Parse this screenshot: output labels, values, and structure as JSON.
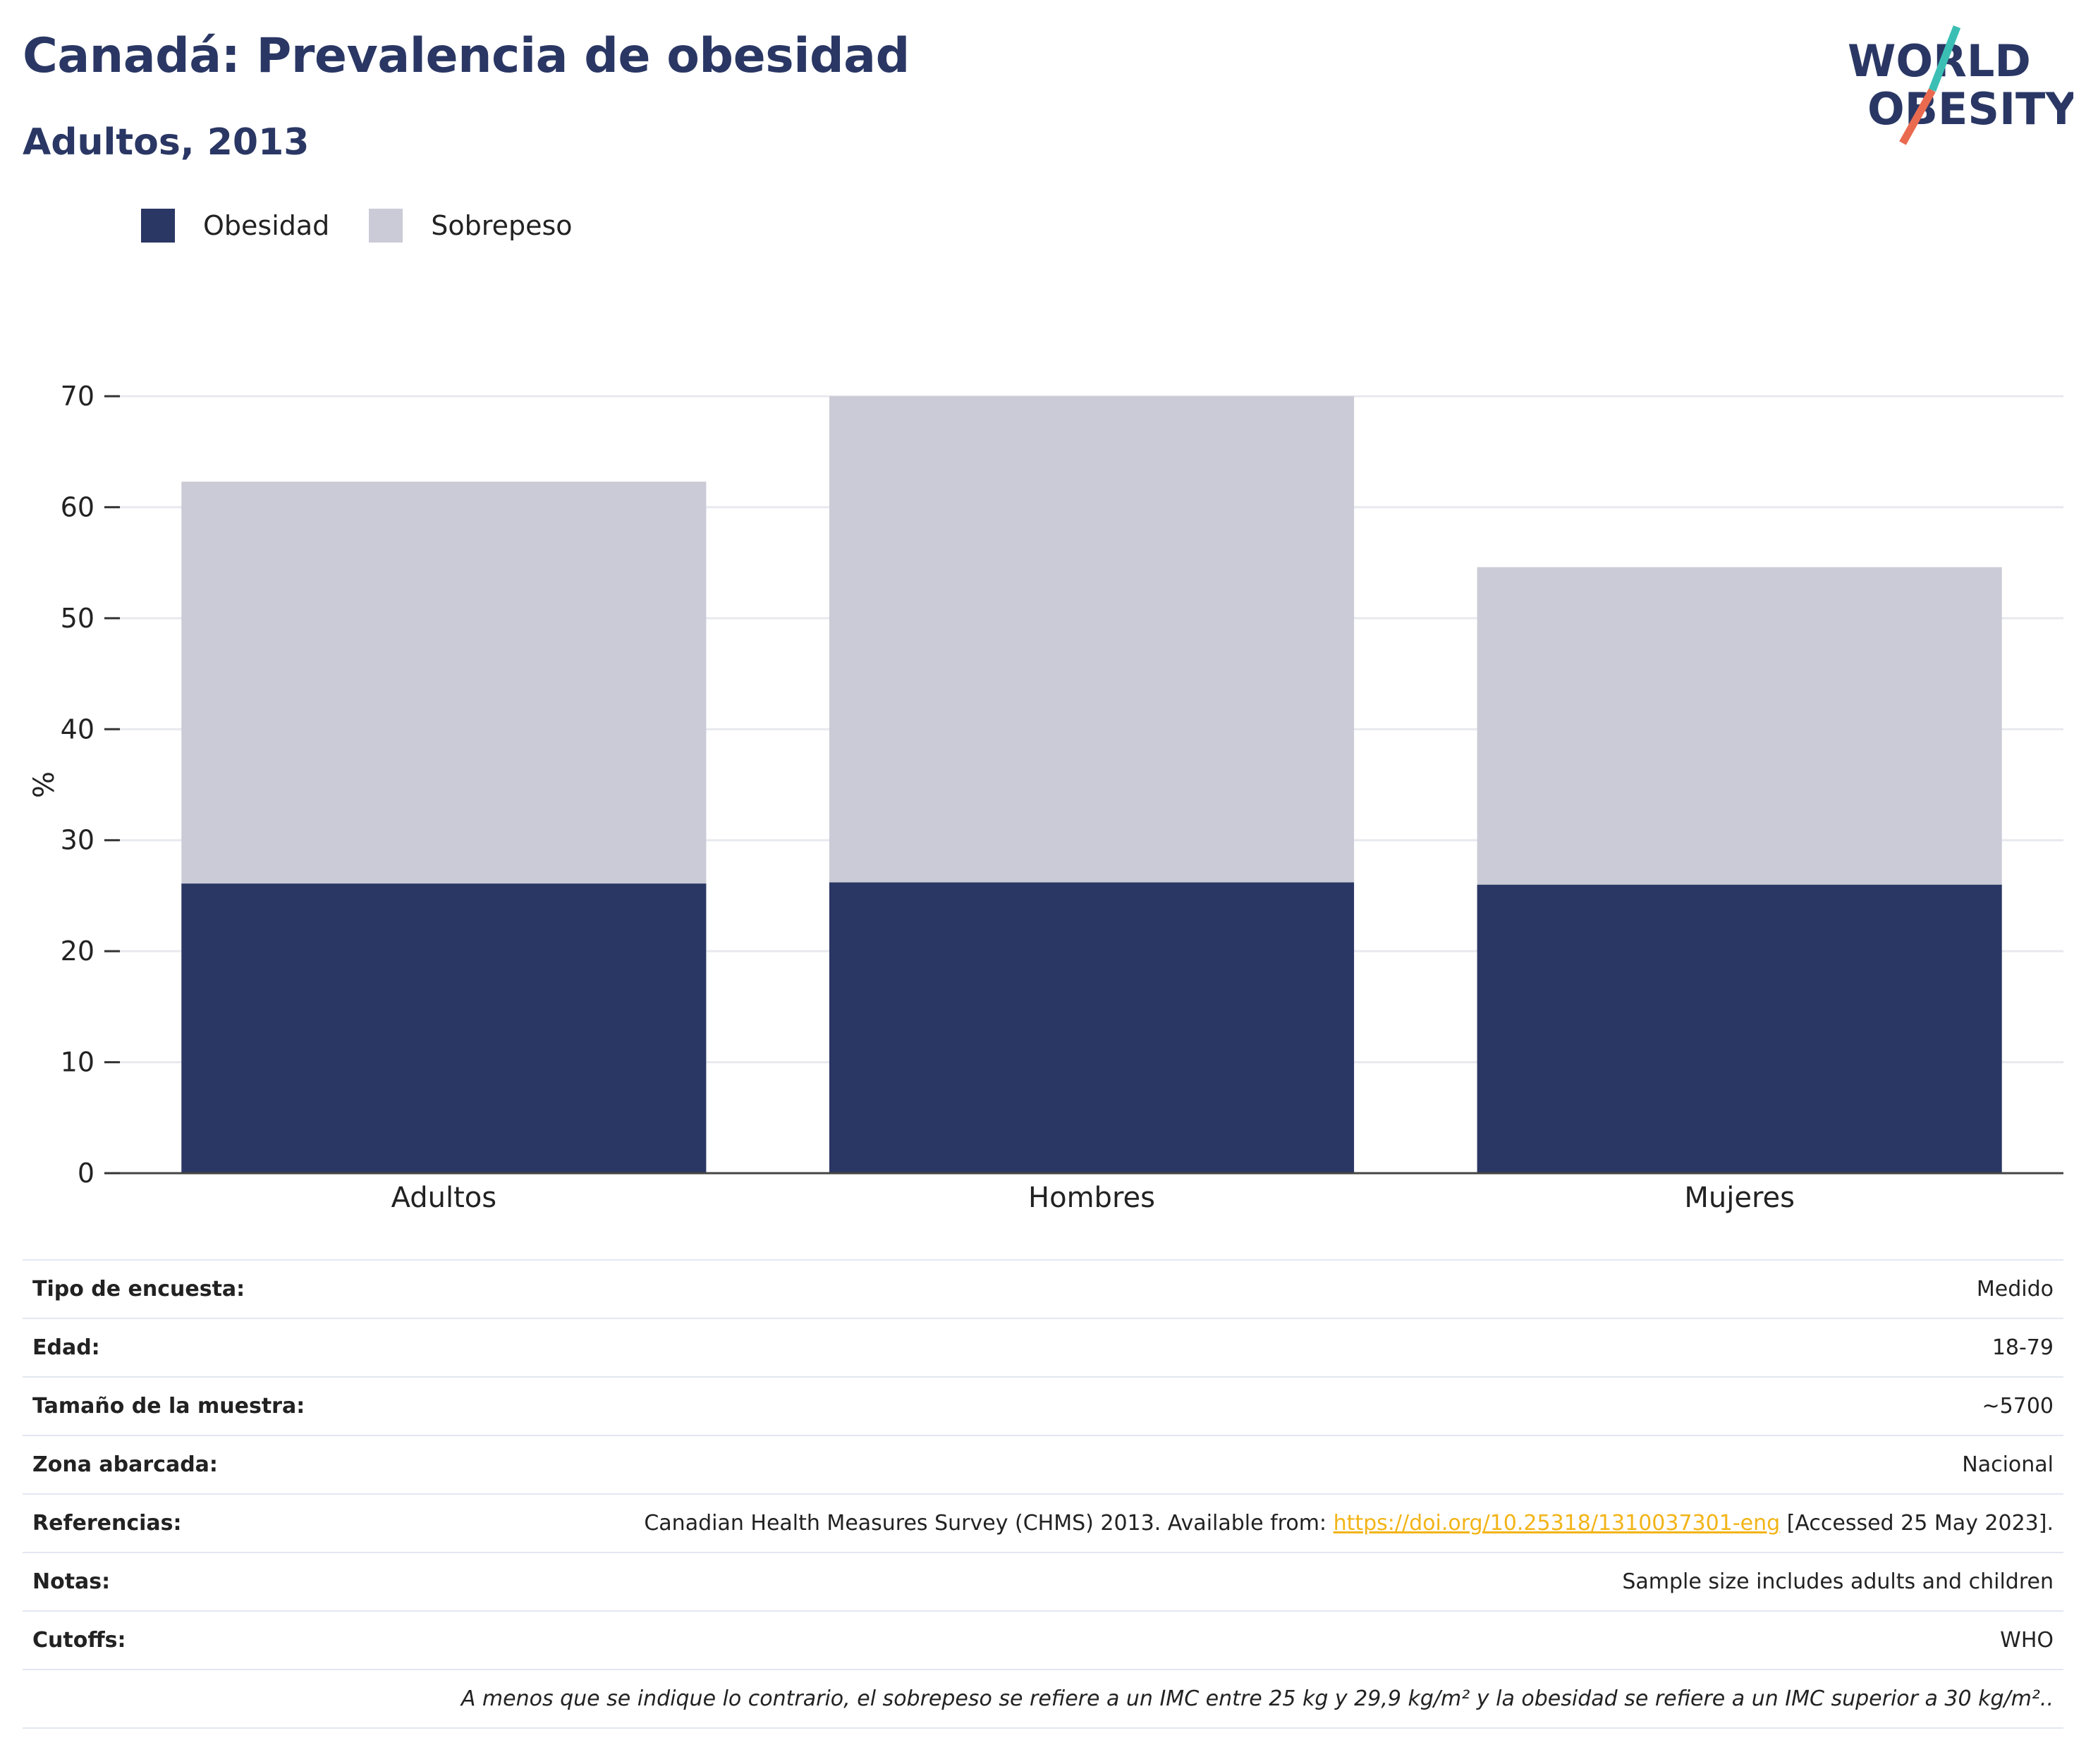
{
  "header": {
    "title": "Canadá: Prevalencia de obesidad",
    "subtitle": "Adultos, 2013"
  },
  "logo": {
    "line1": "WORLD",
    "line2": "OBESITY",
    "colors": {
      "text": "#2a3764",
      "slash_top": "#3bbfb4",
      "slash_bottom": "#ea6a50"
    }
  },
  "legend": [
    {
      "label": "Obesidad",
      "color": "#2a3764"
    },
    {
      "label": "Sobrepeso",
      "color": "#cacbd6"
    }
  ],
  "chart_data": {
    "type": "bar",
    "stacked": true,
    "categories": [
      "Adultos",
      "Hombres",
      "Mujeres"
    ],
    "series": [
      {
        "name": "Obesidad",
        "color": "#2a3764",
        "values": [
          26.1,
          26.2,
          26.0
        ]
      },
      {
        "name": "Sobrepeso",
        "color": "#cacbd6",
        "values": [
          36.2,
          43.8,
          28.6
        ]
      }
    ],
    "ylabel": "%",
    "ylim": [
      0,
      70
    ],
    "yticks": [
      0,
      10,
      20,
      30,
      40,
      50,
      60,
      70
    ],
    "grid": true,
    "legend_position": "top-left"
  },
  "meta": {
    "rows": [
      {
        "label": "Tipo de encuesta:",
        "value": "Medido"
      },
      {
        "label": "Edad:",
        "value": "18-79"
      },
      {
        "label": "Tamaño de la muestra:",
        "value": "~5700"
      },
      {
        "label": "Zona abarcada:",
        "value": "Nacional"
      }
    ],
    "references": {
      "label": "Referencias:",
      "prefix": "Canadian Health Measures Survey (CHMS) 2013. Available from: ",
      "link": "https://doi.org/10.25318/1310037301-eng",
      "suffix": " [Accessed 25 May 2023]."
    },
    "rows2": [
      {
        "label": "Notas:",
        "value": "Sample size includes adults and children"
      },
      {
        "label": "Cutoffs:",
        "value": "WHO"
      }
    ],
    "footnote": "A menos que se indique lo contrario, el sobrepeso se refiere a un IMC entre 25 kg y 29,9 kg/m² y la obesidad se refiere a un IMC superior a 30 kg/m²..",
    "link_color": "#f2b418"
  }
}
